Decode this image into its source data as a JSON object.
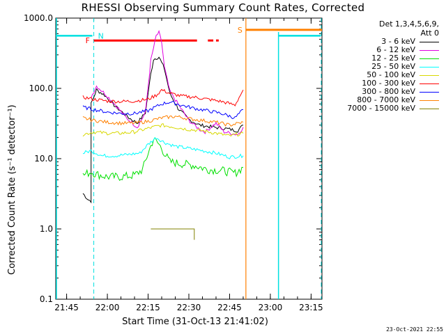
{
  "chart_data": {
    "type": "line",
    "title": "RHESSI Observing Summary Count Rates, Corrected",
    "xlabel": "Start Time (31-Oct-13 21:41:02)",
    "ylabel": "Corrected Count Rate",
    "ylabel_units": "(s⁻¹ detector⁻¹)",
    "y_scale": "log",
    "ylim": [
      0.1,
      1000
    ],
    "y_ticks": [
      "1000.0",
      "100.0",
      "10.0",
      "1.0",
      "0.1"
    ],
    "x_ticks": [
      "21:45",
      "22:00",
      "22:15",
      "22:30",
      "22:45",
      "23:00",
      "23:15"
    ],
    "xlim": [
      "21:41",
      "23:19"
    ],
    "legend_header": [
      "Det 1,3,4,5,6,9,",
      "Att 0"
    ],
    "legend_position": "right",
    "series": [
      {
        "name": "3 - 6 keV",
        "color": "#000000",
        "points": [
          [
            "21:51",
            3.2
          ],
          [
            "21:53",
            2.6
          ],
          [
            "21:54",
            2.5
          ],
          [
            "21:54",
            60
          ],
          [
            "21:56",
            95
          ],
          [
            "21:59",
            80
          ],
          [
            "22:03",
            55
          ],
          [
            "22:08",
            38
          ],
          [
            "22:11",
            32
          ],
          [
            "22:14",
            45
          ],
          [
            "22:16",
            160
          ],
          [
            "22:17",
            260
          ],
          [
            "22:19",
            280
          ],
          [
            "22:21",
            190
          ],
          [
            "22:23",
            85
          ],
          [
            "22:26",
            52
          ],
          [
            "22:30",
            36
          ],
          [
            "22:34",
            30
          ],
          [
            "22:39",
            28
          ],
          [
            "22:43",
            27
          ],
          [
            "22:48",
            25
          ],
          [
            "22:50",
            30
          ]
        ]
      },
      {
        "name": "6 - 12 keV",
        "color": "#e000e0",
        "points": [
          [
            "21:54",
            75
          ],
          [
            "21:56",
            108
          ],
          [
            "21:59",
            85
          ],
          [
            "22:03",
            58
          ],
          [
            "22:07",
            38
          ],
          [
            "22:11",
            28
          ],
          [
            "22:14",
            45
          ],
          [
            "22:16",
            250
          ],
          [
            "22:18",
            560
          ],
          [
            "22:19",
            620
          ],
          [
            "22:20",
            450
          ],
          [
            "22:21",
            200
          ],
          [
            "22:23",
            90
          ],
          [
            "22:26",
            60
          ],
          [
            "22:30",
            35
          ],
          [
            "22:34",
            26
          ],
          [
            "22:36",
            24
          ],
          [
            "22:40",
            32
          ],
          [
            "22:43",
            24
          ],
          [
            "22:48",
            22
          ],
          [
            "22:50",
            28
          ]
        ]
      },
      {
        "name": "12 - 25 keV",
        "color": "#00e000",
        "points": [
          [
            "21:51",
            5.8
          ],
          [
            "21:54",
            6.5
          ],
          [
            "21:56",
            6.0
          ],
          [
            "22:00",
            5.5
          ],
          [
            "22:05",
            5.5
          ],
          [
            "22:10",
            5.8
          ],
          [
            "22:13",
            7
          ],
          [
            "22:15",
            12
          ],
          [
            "22:17",
            19
          ],
          [
            "22:19",
            16
          ],
          [
            "22:21",
            12
          ],
          [
            "22:23",
            9
          ],
          [
            "22:27",
            8.5
          ],
          [
            "22:32",
            8
          ],
          [
            "22:37",
            7
          ],
          [
            "22:42",
            6.8
          ],
          [
            "22:47",
            6.2
          ],
          [
            "22:50",
            7.5
          ]
        ]
      },
      {
        "name": "25 - 50 keV",
        "color": "#00ffff",
        "points": [
          [
            "21:51",
            12
          ],
          [
            "21:54",
            13
          ],
          [
            "21:58",
            11
          ],
          [
            "22:03",
            11
          ],
          [
            "22:08",
            11.5
          ],
          [
            "22:12",
            12
          ],
          [
            "22:15",
            16
          ],
          [
            "22:18",
            20
          ],
          [
            "22:21",
            17
          ],
          [
            "22:25",
            15
          ],
          [
            "22:30",
            14
          ],
          [
            "22:35",
            13
          ],
          [
            "22:40",
            12
          ],
          [
            "22:45",
            10.5
          ],
          [
            "22:50",
            11
          ]
        ]
      },
      {
        "name": "50 - 100 keV",
        "color": "#d8d800",
        "points": [
          [
            "21:51",
            22
          ],
          [
            "21:55",
            24
          ],
          [
            "22:00",
            23
          ],
          [
            "22:05",
            23
          ],
          [
            "22:10",
            24
          ],
          [
            "22:15",
            27
          ],
          [
            "22:20",
            30
          ],
          [
            "22:25",
            28
          ],
          [
            "22:30",
            26
          ],
          [
            "22:35",
            25
          ],
          [
            "22:40",
            23
          ],
          [
            "22:45",
            21
          ],
          [
            "22:50",
            23
          ]
        ]
      },
      {
        "name": "100 - 300 keV",
        "color": "#ff0000",
        "points": [
          [
            "21:51",
            75
          ],
          [
            "21:55",
            70
          ],
          [
            "22:00",
            66
          ],
          [
            "22:05",
            65
          ],
          [
            "22:10",
            66
          ],
          [
            "22:15",
            70
          ],
          [
            "22:18",
            80
          ],
          [
            "22:20",
            95
          ],
          [
            "22:23",
            85
          ],
          [
            "22:27",
            78
          ],
          [
            "22:32",
            75
          ],
          [
            "22:37",
            70
          ],
          [
            "22:42",
            65
          ],
          [
            "22:47",
            58
          ],
          [
            "22:50",
            95
          ]
        ]
      },
      {
        "name": "300 - 800 keV",
        "color": "#0000ff",
        "points": [
          [
            "21:51",
            54
          ],
          [
            "21:55",
            50
          ],
          [
            "22:00",
            46
          ],
          [
            "22:05",
            44
          ],
          [
            "22:10",
            44
          ],
          [
            "22:15",
            48
          ],
          [
            "22:20",
            60
          ],
          [
            "22:23",
            64
          ],
          [
            "22:27",
            58
          ],
          [
            "22:32",
            52
          ],
          [
            "22:37",
            48
          ],
          [
            "22:42",
            44
          ],
          [
            "22:47",
            38
          ],
          [
            "22:50",
            50
          ]
        ]
      },
      {
        "name": "800 - 7000 keV",
        "color": "#ff8000",
        "points": [
          [
            "21:51",
            38
          ],
          [
            "21:55",
            35
          ],
          [
            "22:00",
            33
          ],
          [
            "22:05",
            32
          ],
          [
            "22:10",
            32
          ],
          [
            "22:15",
            34
          ],
          [
            "22:20",
            38
          ],
          [
            "22:25",
            40
          ],
          [
            "22:30",
            37
          ],
          [
            "22:35",
            35
          ],
          [
            "22:40",
            33
          ],
          [
            "22:45",
            30
          ],
          [
            "22:50",
            33
          ]
        ]
      },
      {
        "name": "7000 - 15000 keV",
        "color": "#808000",
        "points": [
          [
            "22:16",
            1.0
          ],
          [
            "22:20",
            1.0
          ],
          [
            "22:25",
            1.0
          ],
          [
            "22:30",
            1.0
          ],
          [
            "22:32",
            1.0
          ],
          [
            "22:32",
            0.7
          ]
        ]
      }
    ],
    "markers": [
      {
        "label": "N",
        "color": "#00e0e0",
        "time": "21:55"
      },
      {
        "label": "S",
        "color": "#ff8000",
        "time": "22:51"
      }
    ],
    "flare_bars": [
      {
        "label": "F",
        "color": "#ff0000",
        "y": 480,
        "segments": [
          [
            "21:55",
            "22:33"
          ],
          [
            "22:37",
            "22:39"
          ],
          [
            "22:40",
            "22:41"
          ]
        ]
      }
    ]
  }
}
